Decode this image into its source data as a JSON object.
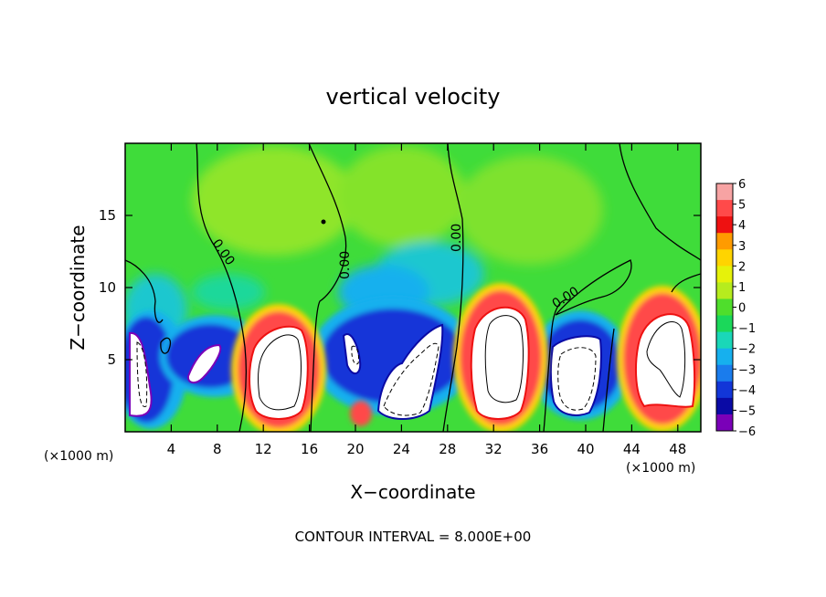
{
  "chart_data": {
    "type": "heatmap",
    "title": "vertical velocity",
    "xlabel": "X−coordinate",
    "ylabel": "Z−coordinate",
    "xlim": [
      0,
      50
    ],
    "ylim": [
      0,
      20
    ],
    "x_ticks": [
      4,
      8,
      12,
      16,
      20,
      24,
      28,
      32,
      36,
      40,
      44,
      48
    ],
    "y_ticks": [
      5,
      10,
      15
    ],
    "x_tick_labels": [
      "4",
      "8",
      "12",
      "16",
      "20",
      "24",
      "28",
      "32",
      "36",
      "40",
      "44",
      "48"
    ],
    "y_tick_labels": [
      "5",
      "10",
      "15"
    ],
    "x_unit_left": "(×1000 m)",
    "x_unit_right": "(×1000 m)",
    "footer": "CONTOUR INTERVAL = 8.000E+00",
    "contour_labels": [
      "0.00",
      "0.00",
      "0.00",
      "0.00"
    ],
    "colorbar": {
      "labels": [
        "6",
        "5",
        "4",
        "3",
        "2",
        "1",
        "0",
        "−1",
        "−2",
        "−3",
        "−4",
        "−5",
        "−6"
      ],
      "colors": [
        "#f7a3a3",
        "#ff4a4a",
        "#ee1111",
        "#ff9b00",
        "#ffd400",
        "#e6f20a",
        "#b6ec1e",
        "#4fde2c",
        "#1bd85a",
        "#1ad7b8",
        "#16b0ee",
        "#1a7ced",
        "#1236d8",
        "#0a0aa5",
        "#7a00b8"
      ]
    },
    "cells": [
      {
        "x": [
          0,
          2
        ],
        "z": [
          0,
          8
        ],
        "w": -6
      },
      {
        "x": [
          5,
          8
        ],
        "z": [
          3,
          7
        ],
        "w": -6
      },
      {
        "x": [
          10,
          16
        ],
        "z": [
          0,
          8.5
        ],
        "w": 6
      },
      {
        "x": [
          18,
          21
        ],
        "z": [
          3,
          7
        ],
        "w": -6
      },
      {
        "x": [
          21,
          28
        ],
        "z": [
          0,
          8
        ],
        "w": -6
      },
      {
        "x": [
          29,
          35
        ],
        "z": [
          0,
          9.5
        ],
        "w": 6
      },
      {
        "x": [
          37,
          42
        ],
        "z": [
          0,
          7
        ],
        "w": -6
      },
      {
        "x": [
          43,
          50
        ],
        "z": [
          0,
          9.5
        ],
        "w": 6
      }
    ]
  }
}
